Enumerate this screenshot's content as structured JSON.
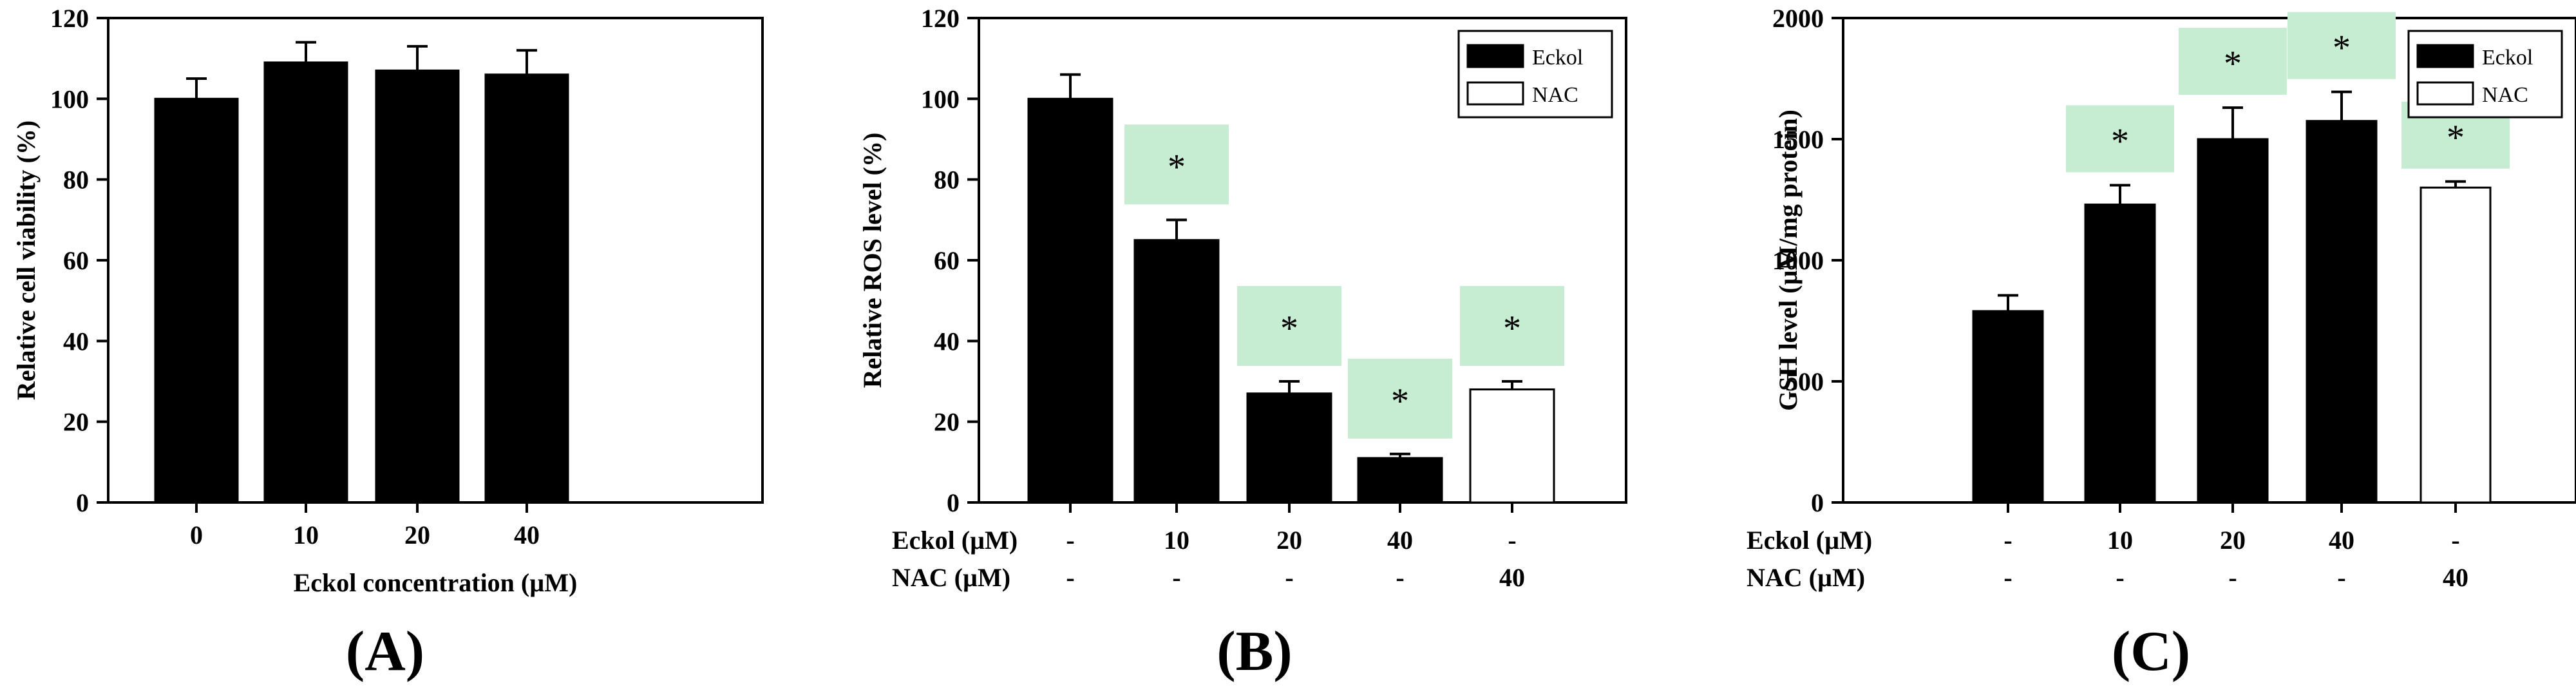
{
  "colors": {
    "eckol_bar": "#000000",
    "nac_bar": "#ffffff",
    "bar_outline": "#000000",
    "significance_box": "#c6ecd1"
  },
  "chart_data": [
    {
      "panel": "(A)",
      "type": "bar",
      "title": "",
      "xlabel": "Eckol concentration (µM)",
      "ylabel": "Relative cell viability (%)",
      "ylim": [
        0,
        120
      ],
      "yticks": [
        0,
        20,
        40,
        60,
        80,
        100,
        120
      ],
      "categories": [
        "0",
        "10",
        "20",
        "40"
      ],
      "series": [
        {
          "name": "Eckol",
          "values": [
            100,
            109,
            107,
            106
          ],
          "errors": [
            5,
            5,
            6,
            6
          ],
          "fill": "eckol_bar",
          "significant": [
            false,
            false,
            false,
            false
          ]
        }
      ],
      "legend": null,
      "condition_rows": []
    },
    {
      "panel": "(B)",
      "type": "bar",
      "title": "",
      "xlabel": "",
      "ylabel": "Relative ROS level (%)",
      "ylim": [
        0,
        120
      ],
      "yticks": [
        0,
        20,
        40,
        60,
        80,
        100,
        120
      ],
      "categories": [
        "-/-",
        "10/-",
        "20/-",
        "40/-",
        "-/40"
      ],
      "series": [
        {
          "name": "Eckol",
          "values": [
            100,
            65,
            27,
            11,
            28
          ],
          "errors": [
            6,
            5,
            3,
            1,
            2
          ],
          "fills": [
            "eckol_bar",
            "eckol_bar",
            "eckol_bar",
            "eckol_bar",
            "nac_bar"
          ],
          "significant": [
            false,
            true,
            true,
            true,
            true
          ]
        }
      ],
      "significance_mark": "*",
      "legend": {
        "position": "top-right",
        "entries": [
          {
            "label": "Eckol",
            "fill": "eckol_bar"
          },
          {
            "label": "NAC",
            "fill": "nac_bar"
          }
        ]
      },
      "condition_rows": [
        {
          "label": "Eckol (µM)",
          "values": [
            "-",
            "10",
            "20",
            "40",
            "-"
          ]
        },
        {
          "label": "NAC (µM)",
          "values": [
            "-",
            "-",
            "-",
            "-",
            "40"
          ]
        }
      ]
    },
    {
      "panel": "(C)",
      "type": "bar",
      "title": "",
      "xlabel": "",
      "ylabel": "GSH level (µM/mg protein)",
      "ylim": [
        0,
        2000
      ],
      "yticks": [
        0,
        500,
        1000,
        1500,
        2000
      ],
      "categories": [
        "-/-",
        "10/-",
        "20/-",
        "40/-",
        "-/40"
      ],
      "series": [
        {
          "name": "Eckol",
          "values": [
            790,
            1230,
            1500,
            1575,
            1300
          ],
          "errors": [
            65,
            80,
            130,
            120,
            25
          ],
          "fills": [
            "eckol_bar",
            "eckol_bar",
            "eckol_bar",
            "eckol_bar",
            "nac_bar"
          ],
          "significant": [
            false,
            true,
            true,
            true,
            true
          ]
        }
      ],
      "significance_mark": "*",
      "legend": {
        "position": "top-right",
        "entries": [
          {
            "label": "Eckol",
            "fill": "eckol_bar"
          },
          {
            "label": "NAC",
            "fill": "nac_bar"
          }
        ]
      },
      "condition_rows": [
        {
          "label": "Eckol (µM)",
          "values": [
            "-",
            "10",
            "20",
            "40",
            "-"
          ]
        },
        {
          "label": "NAC (µM)",
          "values": [
            "-",
            "-",
            "-",
            "-",
            "40"
          ]
        }
      ]
    }
  ]
}
